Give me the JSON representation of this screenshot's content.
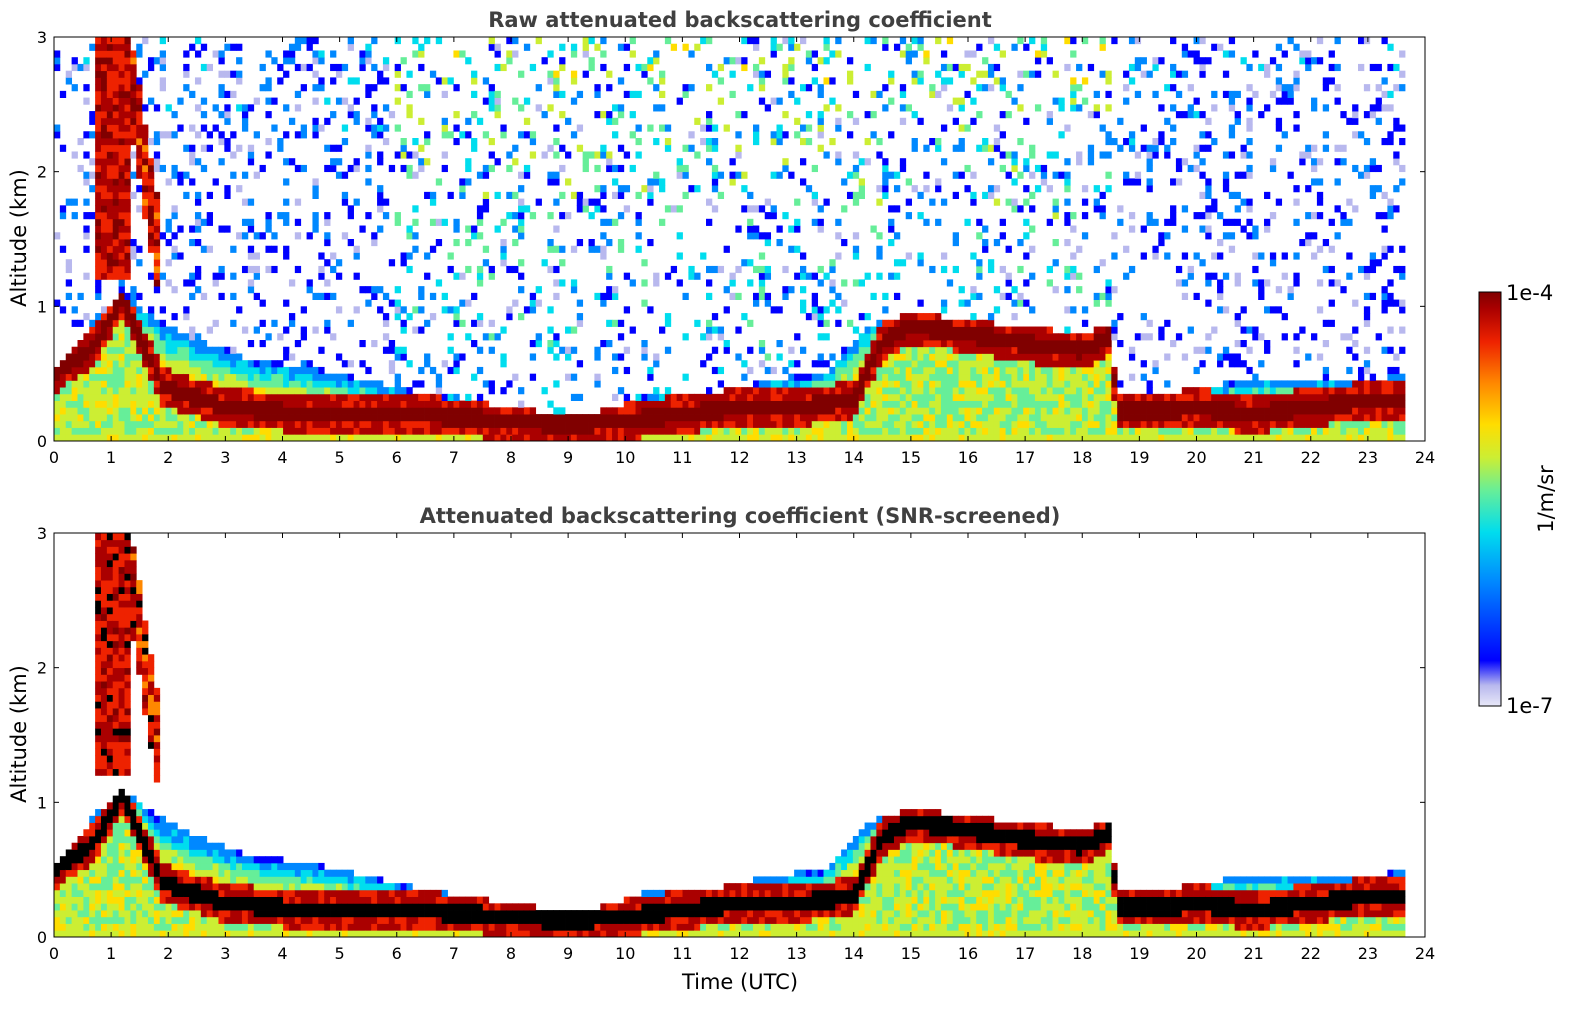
{
  "chart_data": {
    "type": "heatmap",
    "panels": [
      {
        "id": "raw",
        "title": "Raw attenuated backscattering coefficient",
        "xlabel": "",
        "ylabel": "Altitude (km)",
        "xlim": [
          0,
          24
        ],
        "ylim": [
          0,
          3
        ],
        "xticks": [
          "0",
          "1",
          "2",
          "3",
          "4",
          "5",
          "6",
          "7",
          "8",
          "9",
          "10",
          "11",
          "12",
          "13",
          "14",
          "15",
          "16",
          "17",
          "18",
          "19",
          "20",
          "21",
          "22",
          "23",
          "24"
        ],
        "yticks": [
          "0",
          "1",
          "2",
          "3"
        ],
        "screened": false
      },
      {
        "id": "snr",
        "title": "Attenuated backscattering coefficient (SNR-screened)",
        "xlabel": "Time (UTC)",
        "ylabel": "Altitude (km)",
        "xlim": [
          0,
          24
        ],
        "ylim": [
          0,
          3
        ],
        "xticks": [
          "0",
          "1",
          "2",
          "3",
          "4",
          "5",
          "6",
          "7",
          "8",
          "9",
          "10",
          "11",
          "12",
          "13",
          "14",
          "15",
          "16",
          "17",
          "18",
          "19",
          "20",
          "21",
          "22",
          "23",
          "24"
        ],
        "yticks": [
          "0",
          "1",
          "2",
          "3"
        ],
        "screened": true
      }
    ],
    "colorbar": {
      "label": "1/m/sr",
      "min_label": "1e-7",
      "max_label": "1e-4",
      "scale": "log",
      "range": [
        1e-07,
        0.0001
      ]
    },
    "data_end_hour": 23.65,
    "boundary_layer_top_km": [
      [
        0,
        0.5
      ],
      [
        0.7,
        0.9
      ],
      [
        1.2,
        1.1
      ],
      [
        1.8,
        0.9
      ],
      [
        2.5,
        0.75
      ],
      [
        3.5,
        0.6
      ],
      [
        4.5,
        0.55
      ],
      [
        5.5,
        0.45
      ],
      [
        6.5,
        0.35
      ],
      [
        7.5,
        0.28
      ],
      [
        8.5,
        0.22
      ],
      [
        9.5,
        0.22
      ],
      [
        10.5,
        0.35
      ],
      [
        11.5,
        0.35
      ],
      [
        12.5,
        0.45
      ],
      [
        13.5,
        0.5
      ],
      [
        14.2,
        0.85
      ],
      [
        15,
        0.95
      ],
      [
        16,
        0.9
      ],
      [
        17,
        0.85
      ],
      [
        18,
        0.8
      ],
      [
        18.5,
        0.85
      ],
      [
        18.6,
        0.35
      ],
      [
        19.5,
        0.35
      ],
      [
        20,
        0.4
      ],
      [
        21,
        0.45
      ],
      [
        22,
        0.45
      ],
      [
        23,
        0.45
      ],
      [
        23.65,
        0.5
      ]
    ],
    "aerosol_layer_km": [
      [
        0,
        0.5
      ],
      [
        0.7,
        0.7
      ],
      [
        1.2,
        1.05
      ],
      [
        1.9,
        0.4
      ],
      [
        3,
        0.25
      ],
      [
        4.5,
        0.2
      ],
      [
        6,
        0.2
      ],
      [
        7,
        0.18
      ],
      [
        8,
        0.15
      ],
      [
        9,
        0.12
      ],
      [
        10,
        0.15
      ],
      [
        11,
        0.2
      ],
      [
        12,
        0.25
      ],
      [
        13,
        0.25
      ],
      [
        14,
        0.3
      ],
      [
        14.5,
        0.75
      ],
      [
        15,
        0.85
      ],
      [
        16,
        0.8
      ],
      [
        17,
        0.72
      ],
      [
        18,
        0.68
      ],
      [
        18.5,
        0.78
      ],
      [
        18.6,
        0.22
      ],
      [
        19.5,
        0.22
      ],
      [
        20,
        0.25
      ],
      [
        21,
        0.2
      ],
      [
        22,
        0.25
      ],
      [
        23,
        0.3
      ],
      [
        23.65,
        0.3
      ]
    ]
  },
  "colors": {
    "title_color": "#404040",
    "colormap": [
      "#e8e8f8",
      "#b8b8ee",
      "#0000ff",
      "#0088ff",
      "#00ddee",
      "#66ee99",
      "#ccee33",
      "#ffdd00",
      "#ff8800",
      "#ee2200",
      "#aa0000",
      "#800000"
    ]
  }
}
